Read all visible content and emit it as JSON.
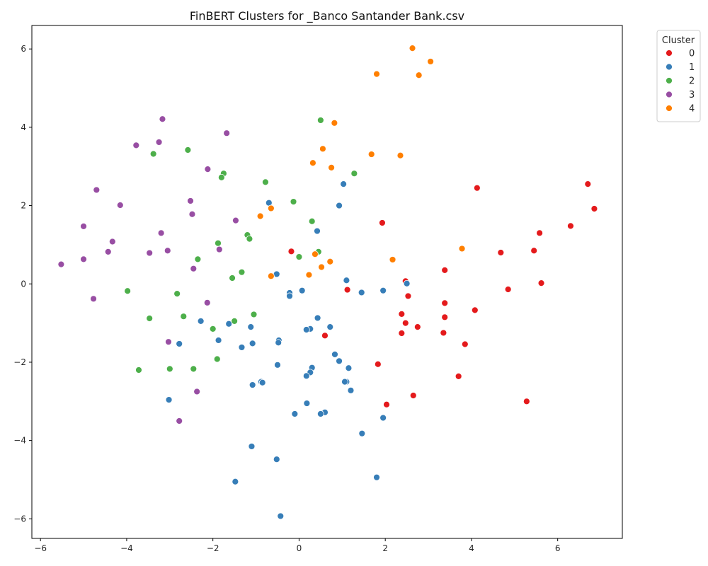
{
  "chart_data": {
    "type": "scatter",
    "title": "FinBERT Clusters for _Banco Santander Bank.csv",
    "xlabel": "",
    "ylabel": "",
    "xlim": [
      -6.2,
      7.5
    ],
    "ylim": [
      -6.5,
      6.6
    ],
    "xticks": [
      -6,
      -4,
      -2,
      0,
      2,
      4,
      6
    ],
    "yticks": [
      -6,
      -4,
      -2,
      0,
      2,
      4,
      6
    ],
    "grid": false,
    "legend": {
      "title": "Cluster",
      "placement": "outside-top-right"
    },
    "series": [
      {
        "name": "0",
        "color": "#e41a1c",
        "points": [
          [
            6.7,
            2.55
          ],
          [
            6.85,
            1.92
          ],
          [
            6.3,
            1.48
          ],
          [
            5.58,
            1.3
          ],
          [
            5.45,
            0.85
          ],
          [
            4.68,
            0.8
          ],
          [
            4.13,
            2.45
          ],
          [
            5.62,
            0.02
          ],
          [
            4.85,
            -0.14
          ],
          [
            4.08,
            -0.67
          ],
          [
            3.38,
            0.35
          ],
          [
            3.38,
            -0.49
          ],
          [
            3.38,
            -0.85
          ],
          [
            3.85,
            -1.54
          ],
          [
            3.35,
            -1.25
          ],
          [
            2.47,
            0.07
          ],
          [
            2.53,
            -0.31
          ],
          [
            2.38,
            -0.77
          ],
          [
            2.47,
            -1.0
          ],
          [
            2.75,
            -1.1
          ],
          [
            2.38,
            -1.26
          ],
          [
            1.93,
            1.56
          ],
          [
            1.12,
            -0.15
          ],
          [
            0.6,
            -1.32
          ],
          [
            -0.18,
            0.83
          ],
          [
            1.83,
            -2.05
          ],
          [
            3.7,
            -2.36
          ],
          [
            2.65,
            -2.85
          ],
          [
            2.03,
            -3.08
          ],
          [
            5.28,
            -3.0
          ]
        ]
      },
      {
        "name": "1",
        "color": "#377eb8",
        "points": [
          [
            1.03,
            2.55
          ],
          [
            0.93,
            2.0
          ],
          [
            -0.7,
            2.07
          ],
          [
            0.42,
            1.35
          ],
          [
            1.1,
            0.09
          ],
          [
            1.45,
            -0.22
          ],
          [
            1.95,
            -0.17
          ],
          [
            2.5,
            0.01
          ],
          [
            -0.52,
            0.25
          ],
          [
            -0.22,
            -0.23
          ],
          [
            -0.22,
            -0.31
          ],
          [
            0.07,
            -0.17
          ],
          [
            0.43,
            -0.87
          ],
          [
            0.72,
            -1.1
          ],
          [
            0.26,
            -1.15
          ],
          [
            0.17,
            -1.17
          ],
          [
            -1.12,
            -1.1
          ],
          [
            -1.63,
            -1.02
          ],
          [
            -2.28,
            -0.95
          ],
          [
            -1.87,
            -1.44
          ],
          [
            -1.08,
            -1.52
          ],
          [
            -1.33,
            -1.62
          ],
          [
            -0.47,
            -1.44
          ],
          [
            -0.48,
            -1.5
          ],
          [
            -2.78,
            -1.53
          ],
          [
            0.83,
            -1.8
          ],
          [
            0.93,
            -1.97
          ],
          [
            1.15,
            -2.15
          ],
          [
            0.3,
            -2.14
          ],
          [
            0.26,
            -2.26
          ],
          [
            -0.5,
            -2.07
          ],
          [
            0.17,
            -2.35
          ],
          [
            1.1,
            -2.5
          ],
          [
            1.06,
            -2.5
          ],
          [
            -0.88,
            -2.5
          ],
          [
            -0.85,
            -2.52
          ],
          [
            -1.08,
            -2.58
          ],
          [
            1.2,
            -2.72
          ],
          [
            0.18,
            -3.05
          ],
          [
            0.6,
            -3.28
          ],
          [
            0.5,
            -3.32
          ],
          [
            -0.1,
            -3.32
          ],
          [
            1.95,
            -3.42
          ],
          [
            -3.02,
            -2.96
          ],
          [
            1.46,
            -3.82
          ],
          [
            -1.1,
            -4.15
          ],
          [
            -0.52,
            -4.48
          ],
          [
            1.8,
            -4.94
          ],
          [
            -1.48,
            -5.05
          ],
          [
            -0.43,
            -5.93
          ]
        ]
      },
      {
        "name": "2",
        "color": "#4daf4a",
        "points": [
          [
            0.5,
            4.18
          ],
          [
            -2.58,
            3.42
          ],
          [
            -3.38,
            3.32
          ],
          [
            -1.75,
            2.82
          ],
          [
            -1.8,
            2.72
          ],
          [
            -0.78,
            2.6
          ],
          [
            1.28,
            2.82
          ],
          [
            -0.13,
            2.1
          ],
          [
            0.3,
            1.6
          ],
          [
            -1.2,
            1.25
          ],
          [
            -1.15,
            1.15
          ],
          [
            -1.88,
            1.04
          ],
          [
            0.45,
            0.82
          ],
          [
            0.0,
            0.69
          ],
          [
            -2.35,
            0.63
          ],
          [
            -1.33,
            0.3
          ],
          [
            -1.55,
            0.15
          ],
          [
            -3.98,
            -0.18
          ],
          [
            -2.83,
            -0.25
          ],
          [
            -3.47,
            -0.88
          ],
          [
            -2.68,
            -0.83
          ],
          [
            -1.5,
            -0.95
          ],
          [
            -1.05,
            -0.78
          ],
          [
            -2.0,
            -1.15
          ],
          [
            -1.9,
            -1.92
          ],
          [
            -3.72,
            -2.2
          ],
          [
            -3.0,
            -2.17
          ],
          [
            -2.45,
            -2.17
          ]
        ]
      },
      {
        "name": "3",
        "color": "#984ea3",
        "points": [
          [
            -3.17,
            4.21
          ],
          [
            -1.68,
            3.85
          ],
          [
            -3.25,
            3.62
          ],
          [
            -3.78,
            3.54
          ],
          [
            -2.12,
            2.93
          ],
          [
            -4.7,
            2.4
          ],
          [
            -2.52,
            2.12
          ],
          [
            -4.15,
            2.01
          ],
          [
            -2.48,
            1.78
          ],
          [
            -1.47,
            1.62
          ],
          [
            -5.0,
            1.47
          ],
          [
            -3.2,
            1.3
          ],
          [
            -4.33,
            1.08
          ],
          [
            -1.85,
            0.88
          ],
          [
            -3.05,
            0.85
          ],
          [
            -4.43,
            0.82
          ],
          [
            -3.47,
            0.79
          ],
          [
            -5.0,
            0.63
          ],
          [
            -5.52,
            0.5
          ],
          [
            -2.45,
            0.39
          ],
          [
            -4.77,
            -0.38
          ],
          [
            -2.13,
            -0.48
          ],
          [
            -3.03,
            -1.48
          ],
          [
            -2.37,
            -2.75
          ],
          [
            -2.78,
            -3.5
          ]
        ]
      },
      {
        "name": "4",
        "color": "#ff7f00",
        "points": [
          [
            2.63,
            6.02
          ],
          [
            3.05,
            5.68
          ],
          [
            1.8,
            5.36
          ],
          [
            2.78,
            5.33
          ],
          [
            0.82,
            4.11
          ],
          [
            0.55,
            3.45
          ],
          [
            1.68,
            3.31
          ],
          [
            2.35,
            3.28
          ],
          [
            0.32,
            3.09
          ],
          [
            0.75,
            2.97
          ],
          [
            -0.65,
            1.93
          ],
          [
            -0.9,
            1.73
          ],
          [
            3.78,
            0.9
          ],
          [
            0.37,
            0.76
          ],
          [
            2.17,
            0.62
          ],
          [
            0.72,
            0.57
          ],
          [
            0.52,
            0.43
          ],
          [
            -0.65,
            0.2
          ],
          [
            0.23,
            0.23
          ]
        ]
      }
    ]
  }
}
